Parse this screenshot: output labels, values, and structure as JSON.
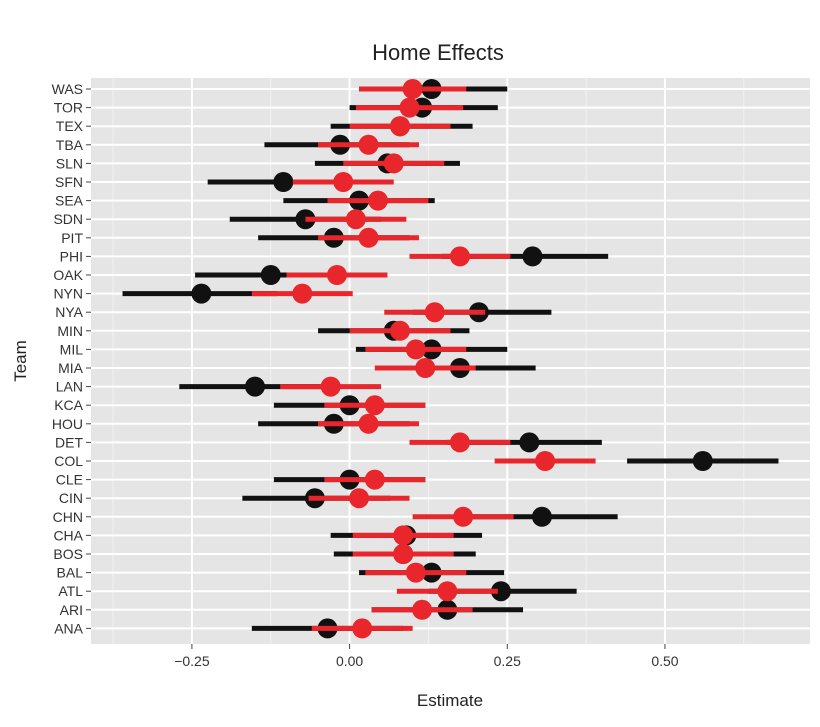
{
  "chart_data": {
    "type": "dot-interval",
    "title": "Home Effects",
    "xlabel": "Estimate",
    "ylabel": "Team",
    "xlim": [
      -0.41,
      0.73
    ],
    "xticks": [
      {
        "value": -0.25,
        "label": "−0.25"
      },
      {
        "value": 0.0,
        "label": "0.00"
      },
      {
        "value": 0.25,
        "label": "0.25"
      },
      {
        "value": 0.5,
        "label": "0.50"
      }
    ],
    "grid": true,
    "legend": "none",
    "categories": [
      "WAS",
      "TOR",
      "TEX",
      "TBA",
      "SLN",
      "SFN",
      "SEA",
      "SDN",
      "PIT",
      "PHI",
      "OAK",
      "NYN",
      "NYA",
      "MIN",
      "MIL",
      "MIA",
      "LAN",
      "KCA",
      "HOU",
      "DET",
      "COL",
      "CLE",
      "CIN",
      "CHN",
      "CHA",
      "BOS",
      "BAL",
      "ATL",
      "ARI",
      "ANA"
    ],
    "series": [
      {
        "color": "#111111",
        "estimate": [
          0.13,
          0.115,
          0.08,
          -0.015,
          0.06,
          -0.105,
          0.015,
          -0.07,
          -0.025,
          0.29,
          -0.125,
          -0.235,
          0.205,
          0.07,
          0.13,
          0.175,
          -0.15,
          0.0,
          -0.025,
          0.285,
          0.56,
          0.0,
          -0.055,
          0.305,
          0.09,
          0.085,
          0.13,
          0.24,
          0.155,
          -0.035
        ],
        "lower": [
          0.015,
          0.0,
          -0.03,
          -0.135,
          -0.055,
          -0.225,
          -0.105,
          -0.19,
          -0.145,
          0.145,
          -0.245,
          -0.36,
          0.1,
          -0.05,
          0.01,
          0.055,
          -0.27,
          -0.12,
          -0.145,
          0.155,
          0.44,
          -0.12,
          -0.17,
          0.19,
          -0.03,
          -0.025,
          0.015,
          0.125,
          0.035,
          -0.155
        ],
        "upper": [
          0.25,
          0.235,
          0.195,
          0.095,
          0.175,
          0.015,
          0.135,
          0.05,
          0.095,
          0.41,
          -0.005,
          -0.115,
          0.32,
          0.19,
          0.25,
          0.295,
          -0.03,
          0.12,
          0.095,
          0.4,
          0.68,
          0.12,
          0.065,
          0.425,
          0.21,
          0.2,
          0.245,
          0.36,
          0.275,
          0.085
        ]
      },
      {
        "color": "#e8262b",
        "estimate": [
          0.1,
          0.095,
          0.08,
          0.03,
          0.07,
          -0.01,
          0.045,
          0.01,
          0.03,
          0.175,
          -0.02,
          -0.075,
          0.135,
          0.08,
          0.105,
          0.12,
          -0.03,
          0.04,
          0.03,
          0.175,
          0.31,
          0.04,
          0.015,
          0.18,
          0.085,
          0.085,
          0.105,
          0.155,
          0.115,
          0.02
        ],
        "lower": [
          0.015,
          0.01,
          0.0,
          -0.05,
          -0.01,
          -0.09,
          -0.035,
          -0.07,
          -0.05,
          0.095,
          -0.1,
          -0.155,
          0.055,
          0.0,
          0.025,
          0.04,
          -0.11,
          -0.04,
          -0.05,
          0.095,
          0.23,
          -0.04,
          -0.065,
          0.1,
          0.005,
          0.005,
          0.025,
          0.075,
          0.035,
          -0.06
        ],
        "upper": [
          0.185,
          0.18,
          0.16,
          0.11,
          0.15,
          0.07,
          0.125,
          0.09,
          0.11,
          0.255,
          0.06,
          0.005,
          0.215,
          0.16,
          0.185,
          0.2,
          0.05,
          0.12,
          0.11,
          0.255,
          0.39,
          0.12,
          0.095,
          0.26,
          0.165,
          0.165,
          0.185,
          0.235,
          0.195,
          0.1
        ]
      }
    ]
  }
}
